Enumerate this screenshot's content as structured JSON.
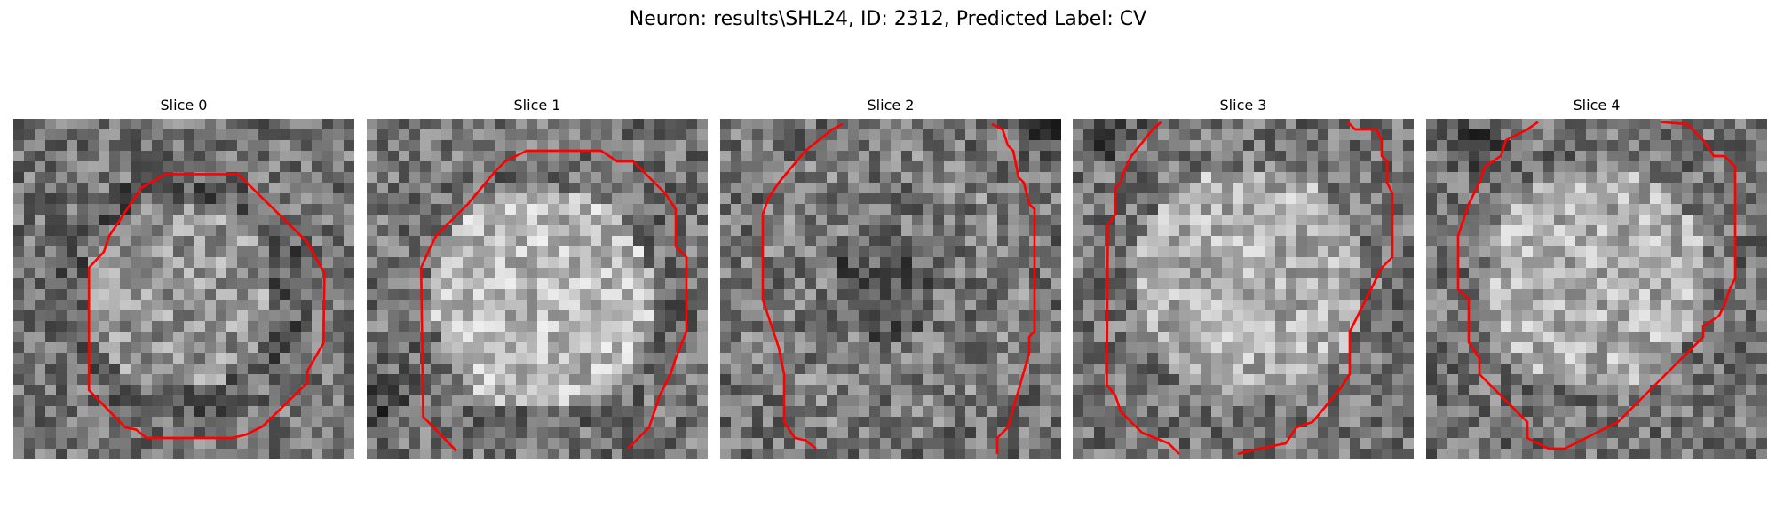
{
  "figure": {
    "title": "Neuron: results\\SHL24, ID: 2312, Predicted Label: CV"
  },
  "panels": [
    {
      "title": "Slice 0"
    },
    {
      "title": "Slice 1"
    },
    {
      "title": "Slice 2"
    },
    {
      "title": "Slice 3"
    },
    {
      "title": "Slice 4"
    }
  ],
  "colors": {
    "contour": "#ff0000",
    "background": "#ffffff"
  },
  "image": {
    "colormap": "grayscale",
    "grid_cells": 32
  }
}
